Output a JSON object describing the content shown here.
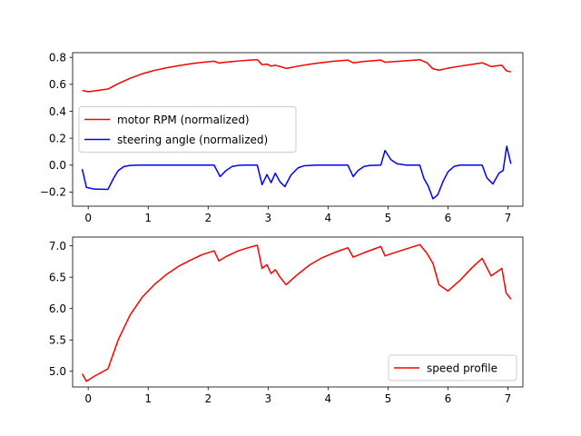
{
  "chart_data": [
    {
      "type": "line",
      "xlim": [
        -0.26,
        7.25
      ],
      "ylim": [
        -0.305,
        0.835
      ],
      "xticks": [
        0,
        1,
        2,
        3,
        4,
        5,
        6,
        7
      ],
      "yticks": [
        -0.2,
        0.0,
        0.2,
        0.4,
        0.6,
        0.8
      ],
      "xtick_labels": [
        "0",
        "1",
        "2",
        "3",
        "4",
        "5",
        "6",
        "7"
      ],
      "ytick_labels": [
        "−0.2",
        "0.0",
        "0.2",
        "0.4",
        "0.6",
        "0.8"
      ],
      "grid": false,
      "legend_position": "center-left",
      "series": [
        {
          "name": "motor RPM (normalized)",
          "color": "#ff0000",
          "x": [
            -0.1,
            0.0,
            0.33,
            0.5,
            0.7,
            0.9,
            1.1,
            1.3,
            1.5,
            1.7,
            1.9,
            2.1,
            2.18,
            2.3,
            2.5,
            2.7,
            2.82,
            2.9,
            2.98,
            3.05,
            3.12,
            3.2,
            3.3,
            3.5,
            3.7,
            3.9,
            4.1,
            4.33,
            4.42,
            4.6,
            4.88,
            4.95,
            5.2,
            5.53,
            5.65,
            5.75,
            5.85,
            6.0,
            6.2,
            6.4,
            6.57,
            6.72,
            6.9,
            6.97,
            7.05
          ],
          "y": [
            0.555,
            0.545,
            0.565,
            0.605,
            0.645,
            0.678,
            0.703,
            0.722,
            0.738,
            0.752,
            0.763,
            0.772,
            0.758,
            0.765,
            0.773,
            0.78,
            0.783,
            0.746,
            0.75,
            0.735,
            0.742,
            0.732,
            0.718,
            0.735,
            0.75,
            0.762,
            0.772,
            0.78,
            0.76,
            0.77,
            0.78,
            0.764,
            0.772,
            0.783,
            0.76,
            0.715,
            0.705,
            0.72,
            0.735,
            0.748,
            0.76,
            0.732,
            0.742,
            0.702,
            0.692
          ]
        },
        {
          "name": "steering angle (normalized)",
          "color": "#0000ff",
          "x": [
            -0.1,
            -0.03,
            0.1,
            0.33,
            0.42,
            0.5,
            0.6,
            0.7,
            0.85,
            1.0,
            1.5,
            2.1,
            2.2,
            2.3,
            2.4,
            2.5,
            2.6,
            2.82,
            2.9,
            2.98,
            3.05,
            3.12,
            3.2,
            3.28,
            3.38,
            3.5,
            3.6,
            3.8,
            4.33,
            4.42,
            4.5,
            4.6,
            4.7,
            4.88,
            4.95,
            5.05,
            5.15,
            5.3,
            5.53,
            5.6,
            5.67,
            5.75,
            5.83,
            5.92,
            6.0,
            6.1,
            6.2,
            6.57,
            6.65,
            6.75,
            6.85,
            6.92,
            6.98,
            7.05
          ],
          "y": [
            -0.03,
            -0.165,
            -0.178,
            -0.18,
            -0.1,
            -0.04,
            -0.01,
            -0.002,
            0.0,
            0.0,
            0.0,
            0.0,
            -0.085,
            -0.04,
            -0.01,
            -0.002,
            0.0,
            0.0,
            -0.145,
            -0.07,
            -0.13,
            -0.06,
            -0.125,
            -0.16,
            -0.075,
            -0.02,
            -0.005,
            0.0,
            0.0,
            -0.085,
            -0.04,
            -0.01,
            -0.002,
            0.0,
            0.108,
            0.04,
            0.01,
            0.0,
            0.0,
            -0.1,
            -0.155,
            -0.25,
            -0.22,
            -0.12,
            -0.05,
            -0.01,
            0.0,
            0.0,
            -0.095,
            -0.14,
            -0.06,
            -0.04,
            0.14,
            0.01
          ]
        }
      ]
    },
    {
      "type": "line",
      "xlim": [
        -0.26,
        7.25
      ],
      "ylim": [
        4.75,
        7.14
      ],
      "xticks": [
        0,
        1,
        2,
        3,
        4,
        5,
        6,
        7
      ],
      "yticks": [
        5.0,
        5.5,
        6.0,
        6.5,
        7.0
      ],
      "xtick_labels": [
        "0",
        "1",
        "2",
        "3",
        "4",
        "5",
        "6",
        "7"
      ],
      "ytick_labels": [
        "5.0",
        "5.5",
        "6.0",
        "6.5",
        "7.0"
      ],
      "grid": false,
      "legend_position": "lower-right",
      "series": [
        {
          "name": "speed profile",
          "color": "#ff0000",
          "x": [
            -0.1,
            -0.03,
            0.1,
            0.33,
            0.5,
            0.7,
            0.9,
            1.1,
            1.3,
            1.5,
            1.7,
            1.9,
            2.1,
            2.18,
            2.3,
            2.5,
            2.7,
            2.82,
            2.9,
            2.98,
            3.05,
            3.12,
            3.2,
            3.3,
            3.5,
            3.7,
            3.9,
            4.1,
            4.33,
            4.42,
            4.6,
            4.88,
            4.95,
            5.2,
            5.53,
            5.65,
            5.75,
            5.85,
            6.0,
            6.2,
            6.4,
            6.57,
            6.72,
            6.9,
            6.97,
            7.05
          ],
          "y": [
            4.96,
            4.84,
            4.92,
            5.04,
            5.5,
            5.9,
            6.18,
            6.38,
            6.54,
            6.67,
            6.77,
            6.86,
            6.92,
            6.76,
            6.83,
            6.92,
            6.98,
            7.01,
            6.64,
            6.7,
            6.56,
            6.62,
            6.5,
            6.38,
            6.55,
            6.7,
            6.81,
            6.89,
            6.97,
            6.82,
            6.89,
            6.99,
            6.84,
            6.92,
            7.02,
            6.88,
            6.72,
            6.38,
            6.28,
            6.45,
            6.65,
            6.8,
            6.52,
            6.64,
            6.25,
            6.15
          ]
        }
      ]
    }
  ]
}
